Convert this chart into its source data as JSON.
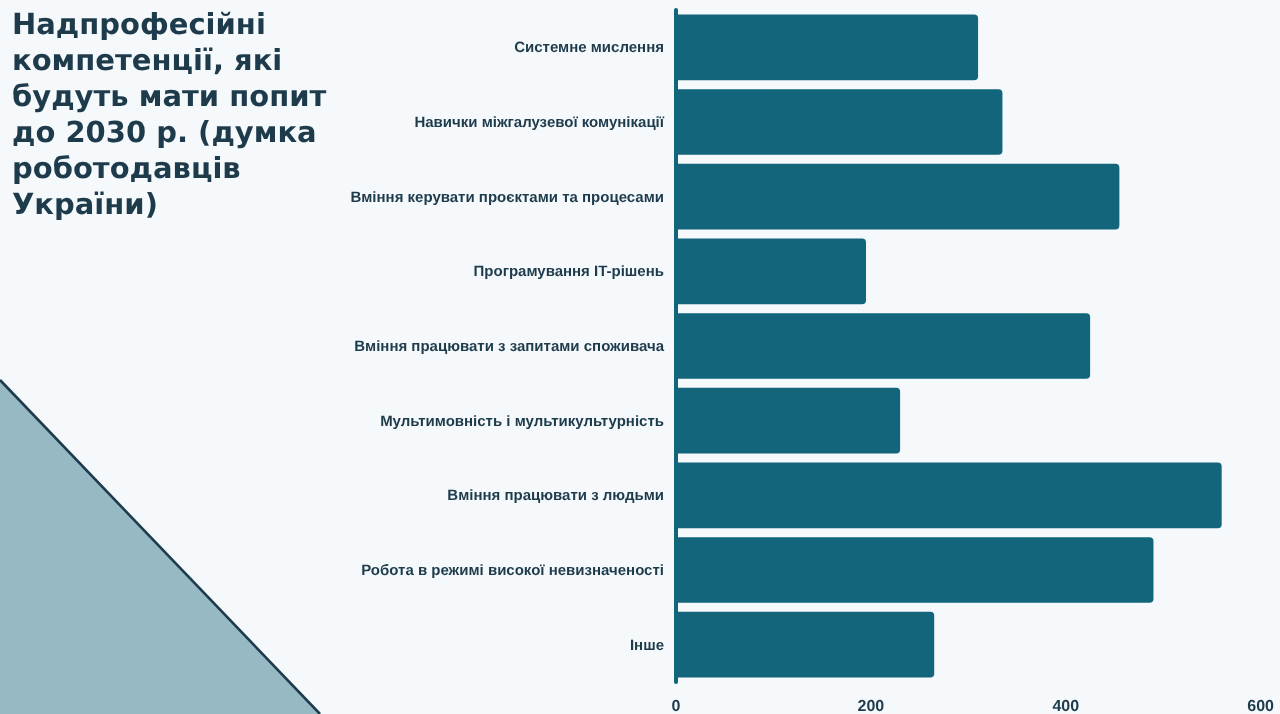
{
  "chart_data": {
    "type": "bar",
    "orientation": "horizontal",
    "title": "Надпрофесійні компетенції, які будуть мати попит до 2030 р. (думка роботодавців України)",
    "categories": [
      "Системне мислення",
      "Навички міжгалузевої комунікації",
      "Вміння керувати проєктами та процесами",
      "Програмування IT-рішень",
      "Вміння працювати з запитами споживача",
      "Мультимовність і мультикультурність",
      "Вміння працювати з людьми",
      "Робота в режимі високої невизначеності",
      "Інше"
    ],
    "values": [
      310,
      335,
      455,
      195,
      425,
      230,
      560,
      490,
      265
    ],
    "color": "#12657a",
    "xlim": [
      0,
      600
    ],
    "xticks": [
      0,
      200,
      400,
      600
    ]
  }
}
